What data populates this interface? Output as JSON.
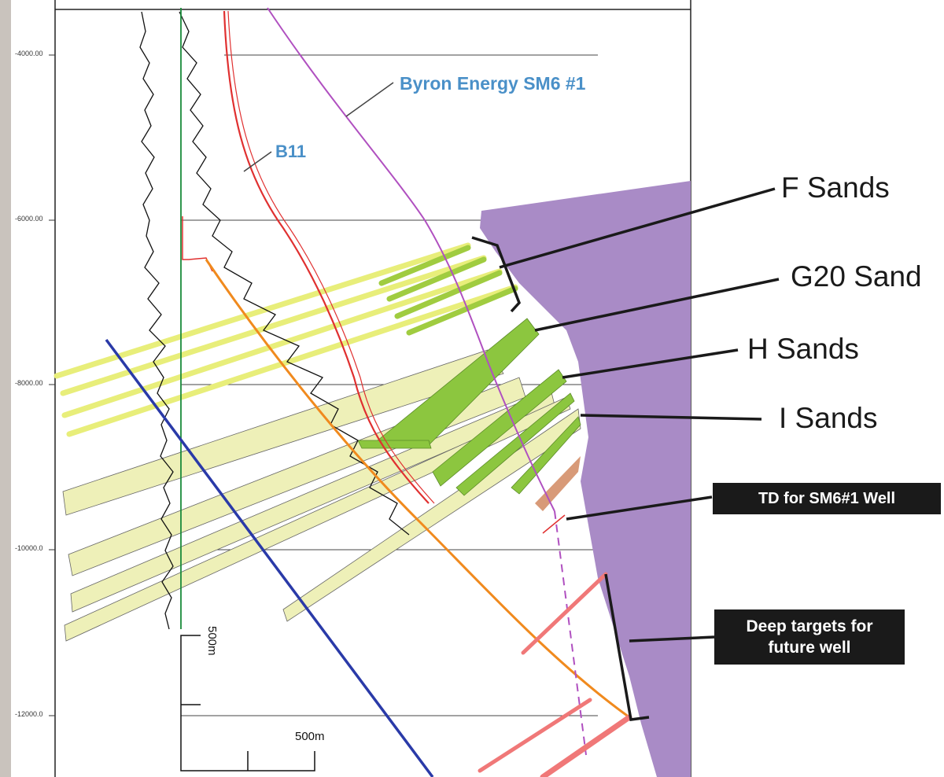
{
  "depth_axis": {
    "ticks": [
      "-4000.00",
      "-6000.00",
      "-8000.00",
      "-10000.0",
      "-12000.0"
    ]
  },
  "wells": {
    "sm6": "Byron Energy SM6 #1",
    "b11": "B11"
  },
  "formations": {
    "f": "F Sands",
    "g20": "G20 Sand",
    "h": "H Sands",
    "i": "I Sands"
  },
  "notes": {
    "td": "TD for SM6#1 Well",
    "deep_line1": "Deep targets for",
    "deep_line2": "future well"
  },
  "scale": {
    "vertical": "500m",
    "horizontal": "500m"
  },
  "colors": {
    "salt": "#a98bc6",
    "sand_bright": "#e8ee7a",
    "sand_green": "#8cc63f",
    "sand_pale": "#eef0b8",
    "well_red": "#e03030",
    "well_orange": "#f08a1e",
    "fault_blue": "#2a3aa8",
    "well_magenta": "#b050c0",
    "target_pink": "#f07878",
    "label_blue": "#4a90c8"
  }
}
